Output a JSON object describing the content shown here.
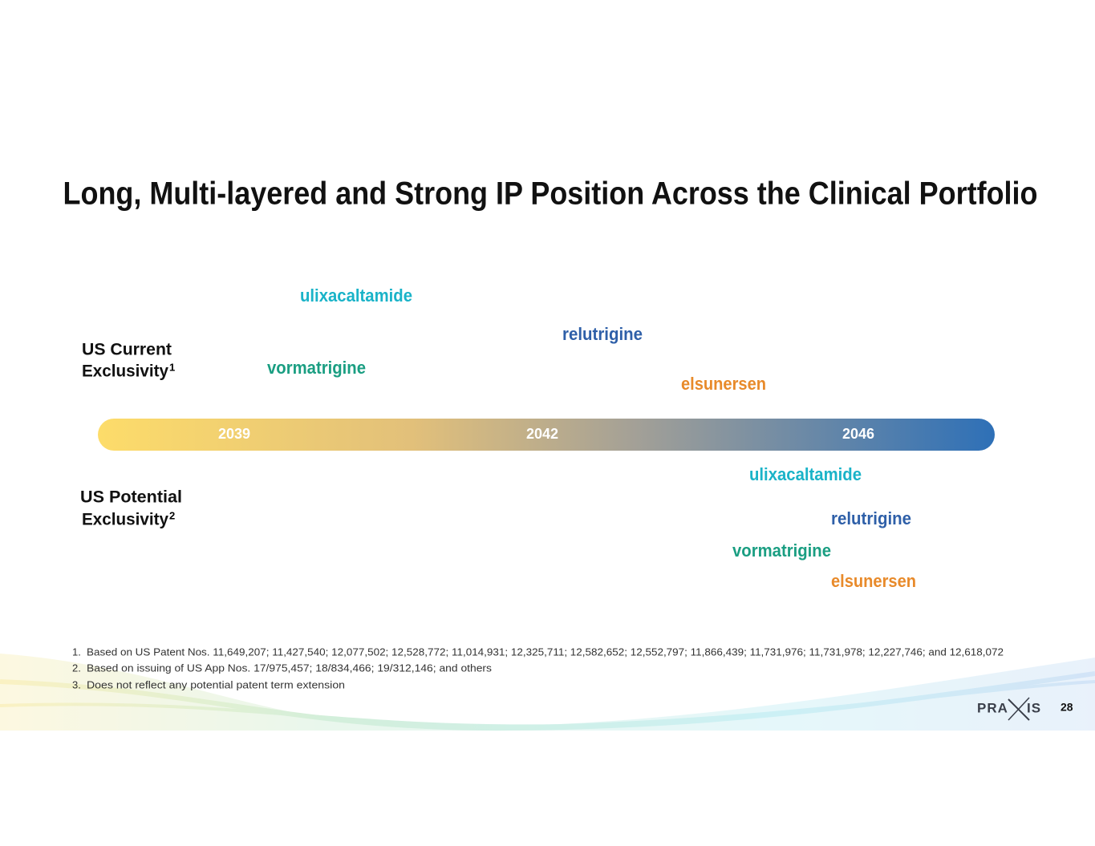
{
  "header": {
    "title": "Long, Multi-layered and Strong IP Position Across the Clinical Portfolio"
  },
  "current": {
    "label": "US Current",
    "label2": "Exclusivity",
    "note": "1",
    "drugs": [
      "ulixacaltamide",
      "relutrigine",
      "vormatrigine",
      "elsunersen"
    ]
  },
  "potential": {
    "label": "US Potential",
    "label2": "Exclusivity",
    "note": "2",
    "drugs": [
      "ulixacaltamide",
      "relutrigine",
      "vormatrigine",
      "elsunersen"
    ]
  },
  "timeline": {
    "years": [
      "2039",
      "2042",
      "2046"
    ]
  },
  "footnotes": [
    {
      "number": "1.",
      "text": "Based on US Patent Nos. 11,649,207; 11,427,540; 12,077,502; 12,528,772; 11,014,931; 12,325,711; 12,582,652; 12,552,797; 11,866,439; 11,731,976; 11,731,978; 12,227,746; and 12,618,072"
    },
    {
      "number": "2.",
      "text": "Based on issuing of US App Nos. 17/975,457; 18/834,466; 19/312,146; and others"
    },
    {
      "number": "3.",
      "text": "Does not reflect any potential patent term extension"
    }
  ],
  "footer": {
    "logo_left": "PRA",
    "logo_right": "IS",
    "page": "28"
  }
}
